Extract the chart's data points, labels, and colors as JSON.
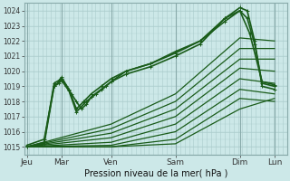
{
  "bg_color": "#cce8e8",
  "grid_color": "#aacccc",
  "line_color": "#1a5c1a",
  "marker_color": "#1a5c1a",
  "xlabel": "Pression niveau de la mer( hPa )",
  "ylim": [
    1014.5,
    1024.5
  ],
  "yticks": [
    1015,
    1016,
    1017,
    1018,
    1019,
    1020,
    1021,
    1022,
    1023,
    1024
  ],
  "ytick_fontsize": 5.5,
  "xtick_fontsize": 6.5,
  "xlabels": [
    "Jeu",
    "Mar",
    "Ven",
    "Sam",
    "Dim",
    "Lun"
  ],
  "xpositions": [
    0.0,
    0.7,
    1.7,
    3.0,
    4.3,
    5.0
  ],
  "xlim": [
    -0.05,
    5.25
  ],
  "vlines": [
    0.0,
    0.7,
    1.7,
    3.0,
    4.3,
    5.0
  ],
  "lines": [
    {
      "x": [
        0.0,
        0.35,
        0.55,
        0.65,
        0.7,
        0.8,
        0.9,
        1.0,
        1.1,
        1.2,
        1.3,
        1.5,
        1.7,
        2.0,
        2.5,
        3.0,
        3.5,
        4.0,
        4.3,
        4.45,
        4.6,
        4.75,
        5.0
      ],
      "y": [
        1015.0,
        1015.2,
        1019.0,
        1019.3,
        1019.5,
        1019.0,
        1018.5,
        1018.0,
        1017.5,
        1017.8,
        1018.3,
        1018.8,
        1019.3,
        1019.8,
        1020.3,
        1021.0,
        1021.8,
        1023.5,
        1024.2,
        1024.0,
        1022.0,
        1019.0,
        1018.8
      ],
      "lw": 1.2,
      "marker": true,
      "ms": 2.5
    },
    {
      "x": [
        0.0,
        0.35,
        0.55,
        0.65,
        0.7,
        0.85,
        1.0,
        1.15,
        1.3,
        1.5,
        1.7,
        2.0,
        2.5,
        3.0,
        3.5,
        4.0,
        4.3,
        4.45,
        4.6,
        4.75,
        5.0
      ],
      "y": [
        1015.0,
        1015.3,
        1019.2,
        1019.4,
        1019.6,
        1018.8,
        1017.5,
        1018.0,
        1018.5,
        1019.0,
        1019.5,
        1020.0,
        1020.5,
        1021.2,
        1022.0,
        1023.3,
        1024.0,
        1023.5,
        1021.8,
        1019.2,
        1019.0
      ],
      "lw": 1.2,
      "marker": true,
      "ms": 2.5
    },
    {
      "x": [
        0.0,
        0.35,
        0.55,
        0.65,
        0.7,
        0.85,
        1.0,
        1.2,
        1.4,
        1.6,
        1.7,
        2.0,
        2.5,
        3.0,
        3.5,
        4.0,
        4.3,
        4.5,
        4.75,
        5.0
      ],
      "y": [
        1015.1,
        1015.5,
        1019.0,
        1019.2,
        1019.4,
        1018.7,
        1017.3,
        1018.0,
        1018.5,
        1019.0,
        1019.3,
        1020.0,
        1020.5,
        1021.3,
        1022.0,
        1023.5,
        1024.0,
        1022.5,
        1019.3,
        1019.1
      ],
      "lw": 1.2,
      "marker": true,
      "ms": 2.5
    },
    {
      "x": [
        0.0,
        1.7,
        3.0,
        4.3,
        5.0
      ],
      "y": [
        1015.0,
        1016.5,
        1018.5,
        1022.2,
        1022.0
      ],
      "lw": 0.9,
      "marker": false,
      "ms": 0
    },
    {
      "x": [
        0.0,
        1.7,
        3.0,
        4.3,
        5.0
      ],
      "y": [
        1015.0,
        1016.2,
        1018.0,
        1021.5,
        1021.5
      ],
      "lw": 0.9,
      "marker": false,
      "ms": 0
    },
    {
      "x": [
        0.0,
        1.7,
        3.0,
        4.3,
        5.0
      ],
      "y": [
        1015.0,
        1015.9,
        1017.5,
        1020.8,
        1020.8
      ],
      "lw": 0.9,
      "marker": false,
      "ms": 0
    },
    {
      "x": [
        0.0,
        1.7,
        3.0,
        4.3,
        5.0
      ],
      "y": [
        1015.0,
        1015.6,
        1017.0,
        1020.2,
        1020.0
      ],
      "lw": 0.9,
      "marker": false,
      "ms": 0
    },
    {
      "x": [
        0.0,
        1.7,
        3.0,
        4.3,
        5.0
      ],
      "y": [
        1015.0,
        1015.3,
        1016.5,
        1019.5,
        1019.2
      ],
      "lw": 0.9,
      "marker": false,
      "ms": 0
    },
    {
      "x": [
        0.0,
        1.7,
        3.0,
        4.3,
        5.0
      ],
      "y": [
        1015.0,
        1015.1,
        1016.0,
        1018.8,
        1018.5
      ],
      "lw": 0.9,
      "marker": false,
      "ms": 0
    },
    {
      "x": [
        0.0,
        1.7,
        3.0,
        4.3,
        5.0
      ],
      "y": [
        1015.0,
        1015.0,
        1015.5,
        1018.2,
        1018.0
      ],
      "lw": 0.9,
      "marker": false,
      "ms": 0
    },
    {
      "x": [
        0.0,
        1.7,
        3.0,
        4.3,
        5.0
      ],
      "y": [
        1015.0,
        1015.0,
        1015.2,
        1017.5,
        1018.2
      ],
      "lw": 0.9,
      "marker": false,
      "ms": 0
    }
  ]
}
